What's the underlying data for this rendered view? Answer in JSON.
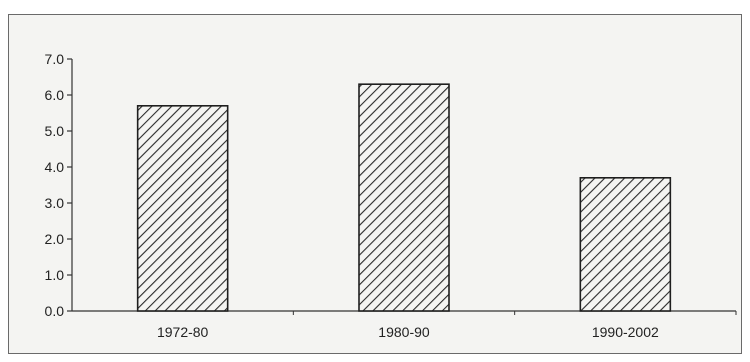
{
  "chart_data": {
    "type": "bar",
    "categories": [
      "1972-80",
      "1980-90",
      "1990-2002"
    ],
    "values": [
      5.7,
      6.3,
      3.7
    ],
    "ylim": [
      0,
      7
    ],
    "yticks": [
      "0.0",
      "1.0",
      "2.0",
      "3.0",
      "4.0",
      "5.0",
      "6.0",
      "7.0"
    ],
    "title": "",
    "xlabel": "",
    "ylabel": "",
    "grid": false,
    "bar_fill": "diagonal-hatch",
    "bar_color": "#2a2a2a",
    "background": "#f4f4f2"
  }
}
